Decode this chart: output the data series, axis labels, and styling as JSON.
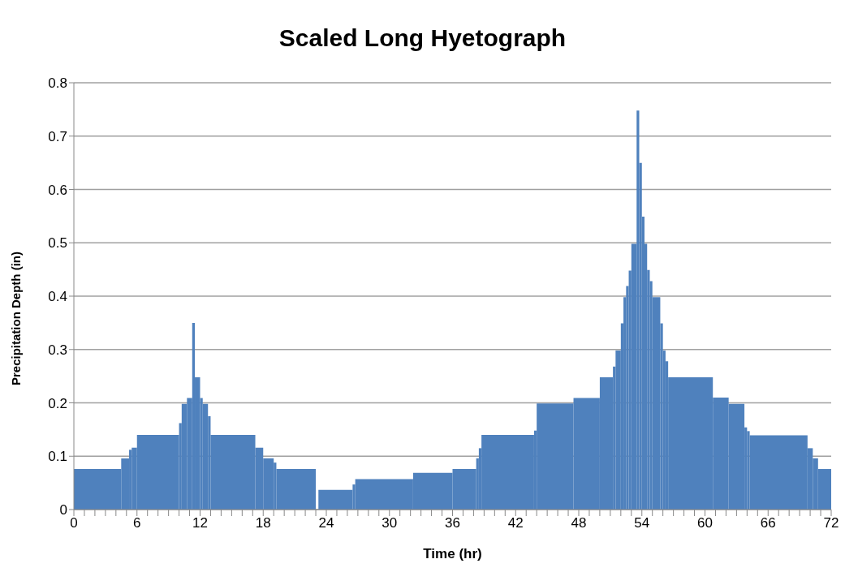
{
  "chart_data": {
    "type": "histogram",
    "title": "Scaled Long Hyetograph",
    "xlabel": "Time (hr)",
    "ylabel": "Precipitation Depth (in)",
    "color": "#4f81bd",
    "bins": [
      0,
      4.5,
      5.25,
      5.5,
      6,
      10,
      10.25,
      10.75,
      11.25,
      11.5,
      12,
      12.25,
      12.75,
      13,
      17.25,
      18,
      19,
      19.25,
      23,
      23.25,
      26.5,
      26.75,
      32.25,
      36,
      38.25,
      38.5,
      38.75,
      43.75,
      44,
      47.5,
      50,
      51.25,
      51.5,
      52,
      52.25,
      52.5,
      52.75,
      53,
      53.5,
      53.75,
      54,
      54.25,
      54.5,
      54.75,
      55,
      55.75,
      56,
      56.25,
      56.5,
      60.75,
      62.25,
      63.75,
      64,
      64.25,
      69.75,
      70.25,
      70.75,
      72
    ],
    "values": [
      0.076,
      0.096,
      0.112,
      0.116,
      0.14,
      0.162,
      0.198,
      0.209,
      0.35,
      0.248,
      0.209,
      0.198,
      0.175,
      0.14,
      0.116,
      0.096,
      0.088,
      0.076,
      0,
      0.037,
      0.047,
      0.057,
      0.069,
      0.076,
      0.096,
      0.115,
      0.14,
      0.148,
      0.199,
      0.209,
      0.248,
      0.268,
      0.298,
      0.349,
      0.398,
      0.419,
      0.448,
      0.498,
      0.748,
      0.65,
      0.549,
      0.498,
      0.449,
      0.428,
      0.398,
      0.349,
      0.298,
      0.278,
      0.248,
      0.21,
      0.198,
      0.154,
      0.147,
      0.139,
      0.115,
      0.096,
      0.076
    ],
    "xlim": [
      0,
      72
    ],
    "xticks": [
      0,
      {
        "value": 1,
        "label": null
      },
      {
        "value": 2,
        "label": null
      },
      {
        "value": 3,
        "label": null
      },
      {
        "value": 4,
        "label": null
      },
      {
        "value": 5,
        "label": null
      },
      6,
      {
        "value": 7,
        "label": null
      },
      {
        "value": 8,
        "label": null
      },
      {
        "value": 9,
        "label": null
      },
      {
        "value": 10,
        "label": null
      },
      {
        "value": 11,
        "label": null
      },
      12,
      {
        "value": 13,
        "label": null
      },
      {
        "value": 14,
        "label": null
      },
      {
        "value": 15,
        "label": null
      },
      {
        "value": 16,
        "label": null
      },
      {
        "value": 17,
        "label": null
      },
      18,
      {
        "value": 19,
        "label": null
      },
      {
        "value": 20,
        "label": null
      },
      {
        "value": 21,
        "label": null
      },
      {
        "value": 22,
        "label": null
      },
      {
        "value": 23,
        "label": null
      },
      24,
      {
        "value": 25,
        "label": null
      },
      {
        "value": 26,
        "label": null
      },
      {
        "value": 27,
        "label": null
      },
      {
        "value": 28,
        "label": null
      },
      {
        "value": 29,
        "label": null
      },
      30,
      {
        "value": 31,
        "label": null
      },
      {
        "value": 32,
        "label": null
      },
      {
        "value": 33,
        "label": null
      },
      {
        "value": 34,
        "label": null
      },
      {
        "value": 35,
        "label": null
      },
      36,
      {
        "value": 37,
        "label": null
      },
      {
        "value": 38,
        "label": null
      },
      {
        "value": 39,
        "label": null
      },
      {
        "value": 40,
        "label": null
      },
      {
        "value": 41,
        "label": null
      },
      42,
      {
        "value": 43,
        "label": null
      },
      {
        "value": 44,
        "label": null
      },
      {
        "value": 45,
        "label": null
      },
      {
        "value": 46,
        "label": null
      },
      {
        "value": 47,
        "label": null
      },
      48,
      {
        "value": 49,
        "label": null
      },
      {
        "value": 50,
        "label": null
      },
      {
        "value": 51,
        "label": null
      },
      {
        "value": 52,
        "label": null
      },
      {
        "value": 53,
        "label": null
      },
      54,
      {
        "value": 55,
        "label": null
      },
      {
        "value": 56,
        "label": null
      },
      {
        "value": 57,
        "label": null
      },
      {
        "value": 58,
        "label": null
      },
      {
        "value": 59,
        "label": null
      },
      60,
      {
        "value": 61,
        "label": null
      },
      {
        "value": 62,
        "label": null
      },
      {
        "value": 63,
        "label": null
      },
      {
        "value": 64,
        "label": null
      },
      {
        "value": 65,
        "label": null
      },
      66,
      {
        "value": 67,
        "label": null
      },
      {
        "value": 68,
        "label": null
      },
      {
        "value": 69,
        "label": null
      },
      {
        "value": 70,
        "label": null
      },
      {
        "value": 71,
        "label": null
      },
      72
    ],
    "ylim": [
      0,
      0.8
    ],
    "yticks": [
      0,
      0.1,
      0.2,
      0.3,
      0.4,
      0.5,
      0.6,
      0.7,
      0.8
    ],
    "grid": "y"
  }
}
